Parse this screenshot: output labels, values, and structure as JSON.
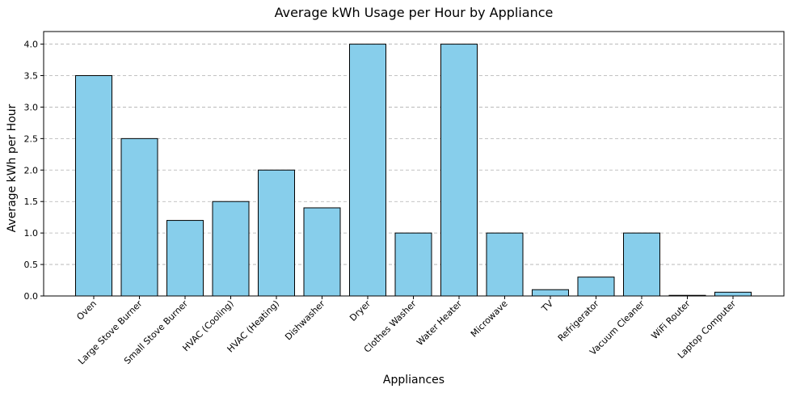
{
  "chart_data": {
    "type": "bar",
    "title": "Average kWh Usage per Hour by Appliance",
    "xlabel": "Appliances",
    "ylabel": "Average kWh per Hour",
    "categories": [
      "Oven",
      "Large Stove Burner",
      "Small Stove Burner",
      "HVAC (Cooling)",
      "HVAC (Heating)",
      "Dishwasher",
      "Dryer",
      "Clothes Washer",
      "Water Heater",
      "Microwave",
      "TV",
      "Refrigerator",
      "Vacuum Cleaner",
      "WiFi Router",
      "Laptop Computer"
    ],
    "values": [
      3.5,
      2.5,
      1.2,
      1.5,
      2.0,
      1.4,
      4.0,
      1.0,
      4.0,
      1.0,
      0.1,
      0.3,
      1.0,
      0.01,
      0.06
    ],
    "ylim": [
      0,
      4.2
    ],
    "yticks": [
      "0.0",
      "0.5",
      "1.0",
      "1.5",
      "2.0",
      "2.5",
      "3.0",
      "3.5",
      "4.0"
    ],
    "grid": "y-dashed",
    "bar_color": "#87CEEB",
    "edge_color": "#000000",
    "grid_color": "#b0b0b0"
  }
}
